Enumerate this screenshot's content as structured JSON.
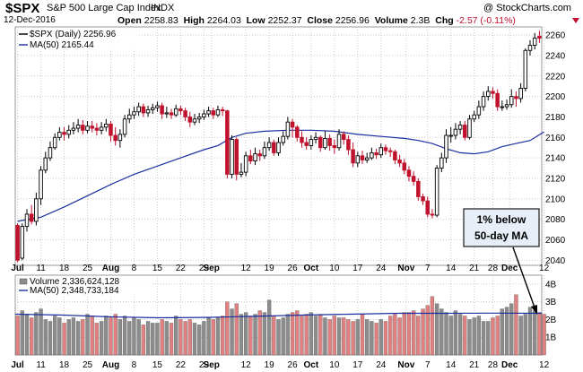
{
  "header": {
    "ticker": "$SPX",
    "description": "S&P 500 Large Cap Index",
    "exchange": "INDX",
    "brand": "@ StockCharts.com",
    "date": "12-Dec-2016",
    "open_label": "Open",
    "open": "2258.83",
    "high_label": "High",
    "high": "2264.03",
    "low_label": "Low",
    "low": "2252.37",
    "close_label": "Close",
    "close": "2256.96",
    "volume_label": "Volume",
    "volume": "2.3B",
    "chg_label": "Chg",
    "chg": "-2.57 (-0.11%)"
  },
  "colors": {
    "up": "#000000",
    "down": "#c0112d",
    "ma_line": "#1c2fa0",
    "volume_up": "#8c8c8c",
    "volume_down": "#e08080",
    "grid": "#cccccc",
    "annotation_bg": "#e8eef8"
  },
  "chart_data": [
    {
      "type": "candlestick",
      "legend": [
        "$SPX (Daily) 2256.96",
        "MA(50) 2165.44"
      ],
      "ylim": [
        2035,
        2268
      ],
      "y_ticks": [
        2040,
        2060,
        2080,
        2100,
        2120,
        2140,
        2160,
        2180,
        2200,
        2220,
        2240,
        2260
      ],
      "x_ticks": [
        {
          "label": "Jul",
          "bold": true,
          "i": 0
        },
        {
          "label": "11",
          "i": 5
        },
        {
          "label": "18",
          "i": 10
        },
        {
          "label": "25",
          "i": 15
        },
        {
          "label": "Aug",
          "bold": true,
          "i": 20
        },
        {
          "label": "8",
          "i": 25
        },
        {
          "label": "15",
          "i": 30
        },
        {
          "label": "22",
          "i": 35
        },
        {
          "label": "29",
          "i": 40
        },
        {
          "label": "Sep",
          "bold": true,
          "i": 41.6
        },
        {
          "label": "12",
          "i": 49
        },
        {
          "label": "19",
          "i": 54
        },
        {
          "label": "26",
          "i": 59
        },
        {
          "label": "Oct",
          "bold": true,
          "i": 63
        },
        {
          "label": "10",
          "i": 68
        },
        {
          "label": "17",
          "i": 73
        },
        {
          "label": "24",
          "i": 78
        },
        {
          "label": "Nov",
          "bold": true,
          "i": 83.4
        },
        {
          "label": "7",
          "i": 88
        },
        {
          "label": "14",
          "i": 93
        },
        {
          "label": "21",
          "i": 98
        },
        {
          "label": "28",
          "i": 102
        },
        {
          "label": "Dec",
          "bold": true,
          "i": 105.6
        },
        {
          "label": "12",
          "i": 113
        }
      ],
      "candles": [
        [
          2074,
          2040,
          2076,
          2038
        ],
        [
          2042,
          2073,
          2076,
          2040
        ],
        [
          2073,
          2085,
          2090,
          2068
        ],
        [
          2085,
          2078,
          2094,
          2075
        ],
        [
          2078,
          2100,
          2106,
          2074
        ],
        [
          2100,
          2128,
          2132,
          2094
        ],
        [
          2128,
          2140,
          2146,
          2125
        ],
        [
          2140,
          2150,
          2156,
          2137
        ],
        [
          2150,
          2160,
          2164,
          2148
        ],
        [
          2160,
          2165,
          2170,
          2157
        ],
        [
          2165,
          2163,
          2170,
          2157
        ],
        [
          2163,
          2167,
          2172,
          2159
        ],
        [
          2167,
          2169,
          2175,
          2163
        ],
        [
          2169,
          2172,
          2178,
          2165
        ],
        [
          2172,
          2167,
          2177,
          2163
        ],
        [
          2167,
          2171,
          2176,
          2164
        ],
        [
          2171,
          2169,
          2176,
          2165
        ],
        [
          2169,
          2167,
          2174,
          2162
        ],
        [
          2167,
          2170,
          2175,
          2163
        ],
        [
          2170,
          2173,
          2178,
          2166
        ],
        [
          2173,
          2162,
          2176,
          2156
        ],
        [
          2162,
          2157,
          2170,
          2152
        ],
        [
          2157,
          2163,
          2168,
          2150
        ],
        [
          2163,
          2178,
          2182,
          2160
        ],
        [
          2178,
          2182,
          2188,
          2174
        ],
        [
          2182,
          2185,
          2190,
          2178
        ],
        [
          2185,
          2190,
          2194,
          2181
        ],
        [
          2190,
          2184,
          2193,
          2180
        ],
        [
          2184,
          2187,
          2191,
          2180
        ],
        [
          2187,
          2189,
          2193,
          2183
        ],
        [
          2189,
          2191,
          2195,
          2185
        ],
        [
          2191,
          2183,
          2194,
          2178
        ],
        [
          2183,
          2184,
          2190,
          2179
        ],
        [
          2184,
          2182,
          2188,
          2178
        ],
        [
          2182,
          2188,
          2192,
          2180
        ],
        [
          2188,
          2186,
          2191,
          2182
        ],
        [
          2186,
          2180,
          2189,
          2176
        ],
        [
          2180,
          2175,
          2185,
          2170
        ],
        [
          2175,
          2178,
          2183,
          2172
        ],
        [
          2178,
          2180,
          2184,
          2174
        ],
        [
          2180,
          2183,
          2187,
          2177
        ],
        [
          2183,
          2186,
          2190,
          2180
        ],
        [
          2186,
          2182,
          2189,
          2178
        ],
        [
          2182,
          2187,
          2191,
          2180
        ],
        [
          2187,
          2186,
          2190,
          2181
        ],
        [
          2186,
          2124,
          2187,
          2120
        ],
        [
          2124,
          2158,
          2162,
          2120
        ],
        [
          2158,
          2124,
          2160,
          2118
        ],
        [
          2124,
          2126,
          2135,
          2121
        ],
        [
          2126,
          2142,
          2146,
          2122
        ],
        [
          2142,
          2137,
          2148,
          2134
        ],
        [
          2137,
          2144,
          2150,
          2133
        ],
        [
          2144,
          2142,
          2148,
          2137
        ],
        [
          2142,
          2150,
          2156,
          2139
        ],
        [
          2150,
          2155,
          2160,
          2147
        ],
        [
          2155,
          2145,
          2158,
          2142
        ],
        [
          2145,
          2155,
          2160,
          2142
        ],
        [
          2155,
          2161,
          2166,
          2152
        ],
        [
          2161,
          2175,
          2180,
          2158
        ],
        [
          2175,
          2170,
          2178,
          2160
        ],
        [
          2170,
          2160,
          2172,
          2156
        ],
        [
          2160,
          2155,
          2166,
          2150
        ],
        [
          2155,
          2152,
          2160,
          2148
        ],
        [
          2152,
          2158,
          2162,
          2148
        ],
        [
          2158,
          2160,
          2165,
          2154
        ],
        [
          2160,
          2150,
          2162,
          2146
        ],
        [
          2150,
          2159,
          2166,
          2148
        ],
        [
          2159,
          2152,
          2163,
          2147
        ],
        [
          2152,
          2150,
          2158,
          2144
        ],
        [
          2150,
          2163,
          2168,
          2147
        ],
        [
          2163,
          2158,
          2166,
          2153
        ],
        [
          2158,
          2148,
          2162,
          2143
        ],
        [
          2148,
          2135,
          2155,
          2131
        ],
        [
          2135,
          2142,
          2146,
          2131
        ],
        [
          2142,
          2138,
          2147,
          2134
        ],
        [
          2138,
          2140,
          2145,
          2135
        ],
        [
          2140,
          2145,
          2150,
          2138
        ],
        [
          2145,
          2143,
          2149,
          2139
        ],
        [
          2143,
          2150,
          2154,
          2140
        ],
        [
          2150,
          2147,
          2153,
          2143
        ],
        [
          2147,
          2146,
          2150,
          2141
        ],
        [
          2146,
          2138,
          2148,
          2134
        ],
        [
          2138,
          2135,
          2143,
          2131
        ],
        [
          2135,
          2128,
          2139,
          2124
        ],
        [
          2128,
          2122,
          2132,
          2117
        ],
        [
          2122,
          2117,
          2127,
          2113
        ],
        [
          2117,
          2102,
          2120,
          2098
        ],
        [
          2102,
          2098,
          2105,
          2094
        ],
        [
          2098,
          2085,
          2102,
          2082
        ],
        [
          2085,
          2084,
          2090,
          2081
        ],
        [
          2084,
          2130,
          2133,
          2082
        ],
        [
          2130,
          2140,
          2145,
          2126
        ],
        [
          2140,
          2162,
          2168,
          2135
        ],
        [
          2162,
          2162,
          2170,
          2155
        ],
        [
          2162,
          2168,
          2174,
          2158
        ],
        [
          2168,
          2172,
          2176,
          2163
        ],
        [
          2172,
          2160,
          2176,
          2157
        ],
        [
          2160,
          2178,
          2182,
          2158
        ],
        [
          2178,
          2182,
          2186,
          2175
        ],
        [
          2182,
          2190,
          2196,
          2178
        ],
        [
          2190,
          2200,
          2205,
          2186
        ],
        [
          2200,
          2205,
          2210,
          2196
        ],
        [
          2205,
          2203,
          2209,
          2198
        ],
        [
          2203,
          2190,
          2207,
          2186
        ],
        [
          2190,
          2190,
          2196,
          2186
        ],
        [
          2190,
          2192,
          2197,
          2187
        ],
        [
          2192,
          2200,
          2207,
          2189
        ],
        [
          2200,
          2198,
          2205,
          2190
        ],
        [
          2198,
          2208,
          2213,
          2194
        ],
        [
          2208,
          2245,
          2247,
          2205
        ],
        [
          2245,
          2250,
          2255,
          2240
        ],
        [
          2250,
          2257,
          2262,
          2246
        ],
        [
          2258.83,
          2256.96,
          2264.03,
          2252.37
        ]
      ],
      "ma50": [
        [
          0,
          2078
        ],
        [
          5,
          2082
        ],
        [
          10,
          2092
        ],
        [
          15,
          2103
        ],
        [
          20,
          2114
        ],
        [
          25,
          2124
        ],
        [
          30,
          2132
        ],
        [
          35,
          2140
        ],
        [
          40,
          2148
        ],
        [
          43,
          2152
        ],
        [
          46,
          2160
        ],
        [
          49,
          2164
        ],
        [
          53,
          2166
        ],
        [
          58,
          2167
        ],
        [
          63,
          2167
        ],
        [
          68,
          2166
        ],
        [
          73,
          2163
        ],
        [
          78,
          2161
        ],
        [
          83,
          2159
        ],
        [
          86,
          2157
        ],
        [
          89,
          2154
        ],
        [
          92,
          2149
        ],
        [
          95,
          2145
        ],
        [
          98,
          2144
        ],
        [
          101,
          2146
        ],
        [
          104,
          2151
        ],
        [
          107,
          2154
        ],
        [
          110,
          2157
        ],
        [
          113,
          2165.44
        ]
      ],
      "annotation": [
        "1% below",
        "50-day MA"
      ]
    },
    {
      "type": "bar",
      "legend": [
        "Volume 2,336,624,128",
        "MA(50) 2,348,733,184"
      ],
      "ylim": [
        0,
        4.5
      ],
      "y_ticks": [
        {
          "label": "1B",
          "v": 1
        },
        {
          "label": "2B",
          "v": 2
        },
        {
          "label": "3B",
          "v": 3
        },
        {
          "label": "4B",
          "v": 4
        }
      ],
      "volumes": [
        2.2,
        2.5,
        2.3,
        2.1,
        2.4,
        2.6,
        2.0,
        1.9,
        2.2,
        2.1,
        1.8,
        2.0,
        2.1,
        1.9,
        2.0,
        2.3,
        2.2,
        1.8,
        1.9,
        2.2,
        2.1,
        2.3,
        2.0,
        2.2,
        1.9,
        2.1,
        2.0,
        1.7,
        1.9,
        1.8,
        1.8,
        2.0,
        1.9,
        1.8,
        2.2,
        2.0,
        1.9,
        2.0,
        1.8,
        1.7,
        1.9,
        2.1,
        2.0,
        2.1,
        2.2,
        3.0,
        2.6,
        2.9,
        2.3,
        2.4,
        2.2,
        2.3,
        2.5,
        2.4,
        3.1,
        2.2,
        2.0,
        2.1,
        2.3,
        2.4,
        2.5,
        2.2,
        2.3,
        2.4,
        2.2,
        2.3,
        2.1,
        2.0,
        2.2,
        2.1,
        2.1,
        2.0,
        1.9,
        2.0,
        2.3,
        2.0,
        1.9,
        1.8,
        2.0,
        1.9,
        2.2,
        2.3,
        2.1,
        2.4,
        2.4,
        2.5,
        2.2,
        2.6,
        2.8,
        3.3,
        2.9,
        2.6,
        2.4,
        2.2,
        2.5,
        2.3,
        2.2,
        2.0,
        2.1,
        2.2,
        1.9,
        1.9,
        2.1,
        2.2,
        2.6,
        2.7,
        2.9,
        3.4,
        2.2,
        2.3,
        2.7,
        2.5,
        2.4,
        2.3
      ],
      "ma50": [
        2.3,
        2.25,
        2.15,
        2.1,
        2.12,
        2.18,
        2.25,
        2.3,
        2.35,
        2.35,
        2.36,
        2.35
      ]
    }
  ]
}
